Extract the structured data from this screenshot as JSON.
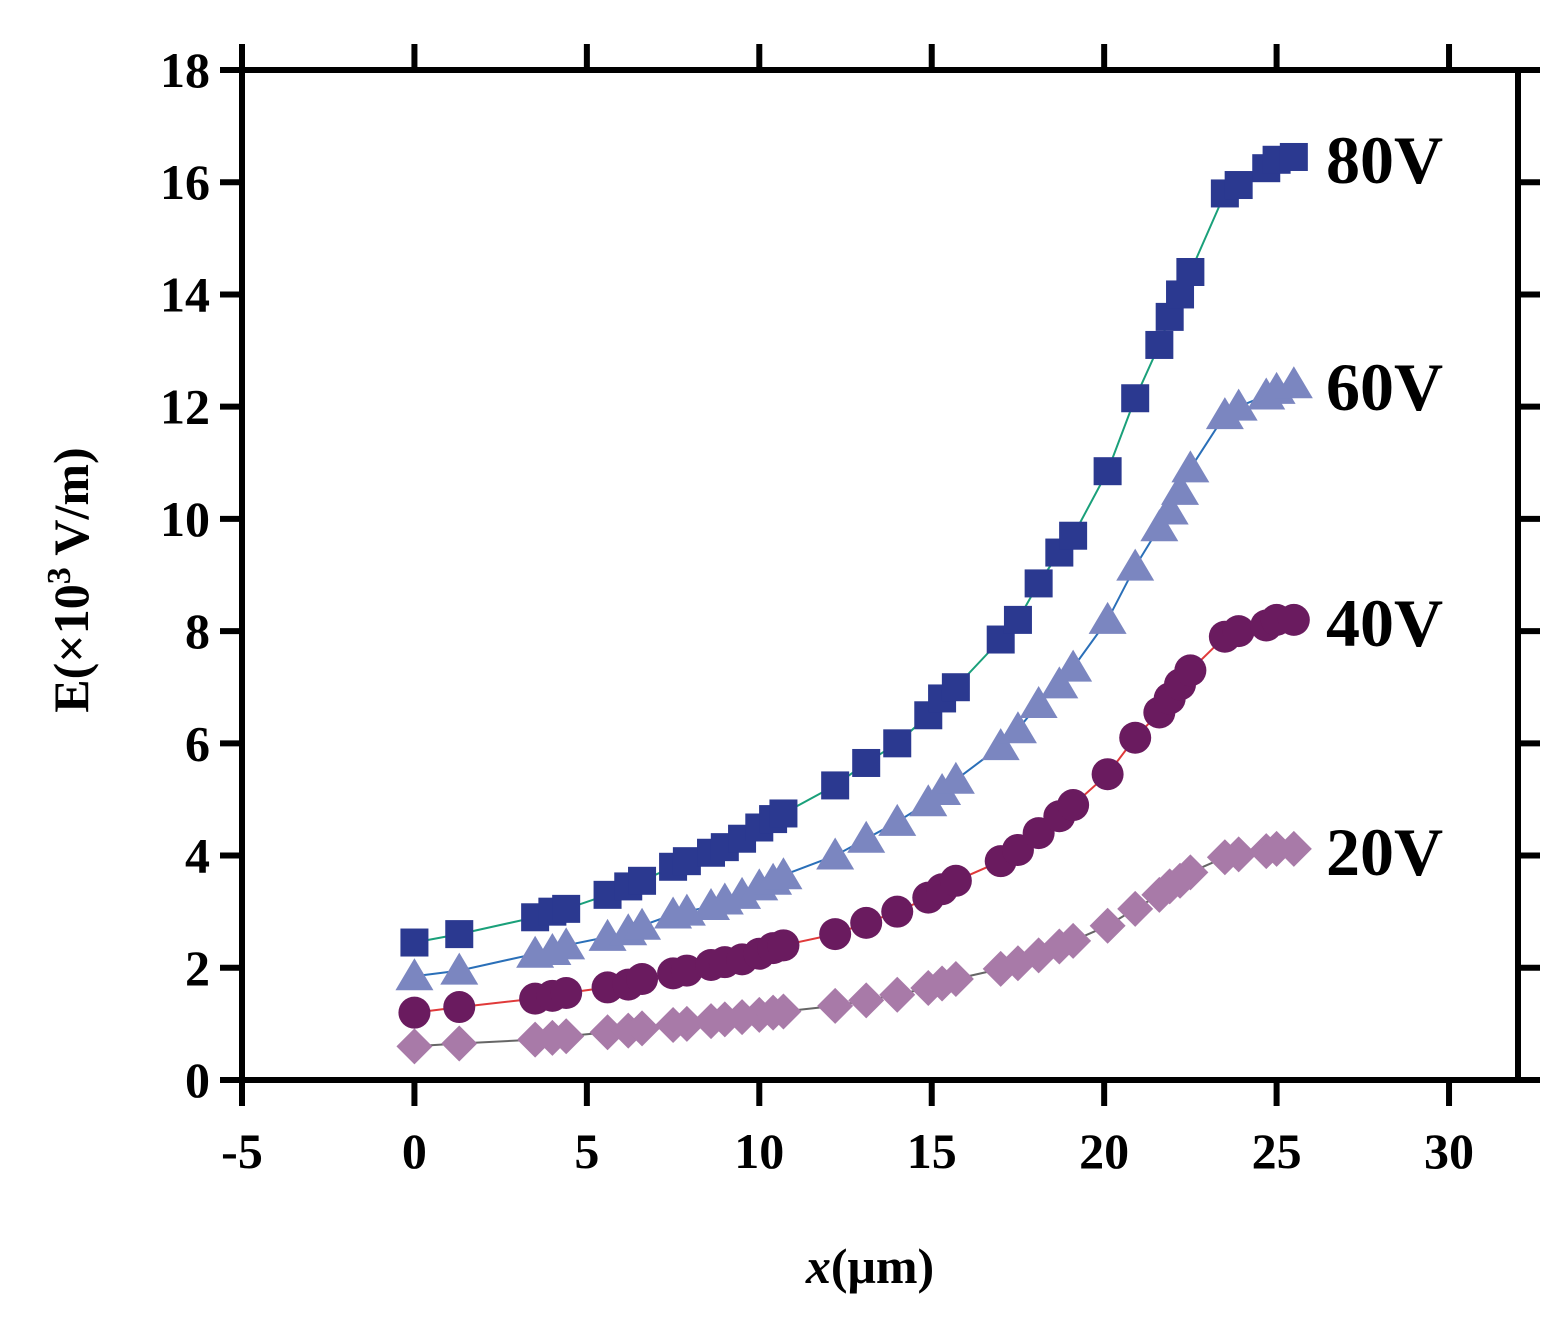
{
  "chart_data": {
    "type": "scatter",
    "title": "",
    "xlabel_italic": "x",
    "xlabel_rest": "(μm)",
    "ylabel_main": "E(×10",
    "ylabel_sup": "3",
    "ylabel_tail": " V/m)",
    "xlim": [
      -5,
      32
    ],
    "ylim": [
      0,
      18
    ],
    "x_ticks": [
      -5,
      0,
      5,
      10,
      15,
      20,
      25,
      30
    ],
    "y_ticks": [
      0,
      2,
      4,
      6,
      8,
      10,
      12,
      14,
      16,
      18
    ],
    "grid": false,
    "x": [
      0,
      1.3,
      3.5,
      4.0,
      4.4,
      5.6,
      6.2,
      6.6,
      7.5,
      7.9,
      8.6,
      9.0,
      9.5,
      10.0,
      10.4,
      10.7,
      12.2,
      13.1,
      14.0,
      14.9,
      15.3,
      15.7,
      17.0,
      17.5,
      18.1,
      18.7,
      19.1,
      20.1,
      20.9,
      21.6,
      21.9,
      22.2,
      22.5,
      23.5,
      23.9,
      24.7,
      25.0,
      25.5
    ],
    "series": [
      {
        "name": "80V",
        "label": "80V",
        "marker": "square",
        "color": "#2b3990",
        "line_color": "#1aa07a",
        "values": [
          2.45,
          2.6,
          2.9,
          3.0,
          3.05,
          3.3,
          3.45,
          3.55,
          3.8,
          3.9,
          4.05,
          4.15,
          4.3,
          4.5,
          4.65,
          4.75,
          5.25,
          5.65,
          6.0,
          6.5,
          6.8,
          7.0,
          7.85,
          8.2,
          8.85,
          9.4,
          9.7,
          10.85,
          12.15,
          13.1,
          13.6,
          14.0,
          14.4,
          15.8,
          15.95,
          16.25,
          16.4,
          16.45
        ]
      },
      {
        "name": "60V",
        "label": "60V",
        "marker": "triangle",
        "color": "#7b86c0",
        "line_color": "#2a6fb8",
        "values": [
          1.85,
          1.95,
          2.25,
          2.3,
          2.4,
          2.55,
          2.65,
          2.75,
          2.95,
          3.0,
          3.1,
          3.2,
          3.3,
          3.45,
          3.55,
          3.65,
          4.0,
          4.3,
          4.6,
          4.95,
          5.15,
          5.35,
          5.95,
          6.25,
          6.7,
          7.05,
          7.35,
          8.2,
          9.15,
          9.85,
          10.15,
          10.5,
          10.9,
          11.85,
          12.0,
          12.2,
          12.3,
          12.4
        ]
      },
      {
        "name": "40V",
        "label": "40V",
        "marker": "circle",
        "color": "#6a1b5f",
        "line_color": "#e03a3a",
        "values": [
          1.2,
          1.3,
          1.45,
          1.5,
          1.55,
          1.65,
          1.7,
          1.8,
          1.9,
          1.95,
          2.05,
          2.1,
          2.15,
          2.25,
          2.35,
          2.4,
          2.6,
          2.8,
          3.0,
          3.25,
          3.4,
          3.55,
          3.9,
          4.1,
          4.4,
          4.7,
          4.9,
          5.45,
          6.1,
          6.55,
          6.8,
          7.05,
          7.3,
          7.9,
          8.0,
          8.1,
          8.2,
          8.2
        ]
      },
      {
        "name": "20V",
        "label": "20V",
        "marker": "diamond",
        "color": "#a87aa8",
        "line_color": "#666666",
        "values": [
          0.6,
          0.65,
          0.72,
          0.75,
          0.78,
          0.85,
          0.88,
          0.92,
          0.98,
          1.0,
          1.05,
          1.08,
          1.12,
          1.16,
          1.2,
          1.22,
          1.32,
          1.42,
          1.52,
          1.64,
          1.72,
          1.8,
          1.98,
          2.08,
          2.22,
          2.38,
          2.48,
          2.75,
          3.05,
          3.3,
          3.45,
          3.55,
          3.7,
          3.97,
          4.02,
          4.08,
          4.12,
          4.12
        ]
      }
    ]
  }
}
